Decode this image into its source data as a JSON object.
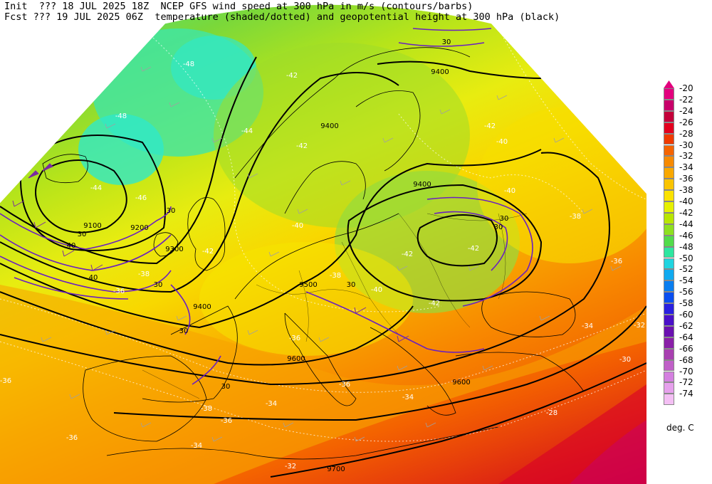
{
  "header": {
    "line1": "Init  ??? 18 JUL 2025 18Z  NCEP GFS wind speed at 300 hPa in m/s (contours/barbs)",
    "line2": "Fcst ??? 19 JUL 2025 06Z  temperature (shaded/dotted) and geopotential height at 300 hPa (black)"
  },
  "colorbar": {
    "levels": [
      "-20",
      "-22",
      "-24",
      "-26",
      "-28",
      "-30",
      "-32",
      "-34",
      "-36",
      "-38",
      "-40",
      "-42",
      "-44",
      "-46",
      "-48",
      "-50",
      "-52",
      "-54",
      "-56",
      "-58",
      "-60",
      "-62",
      "-64",
      "-66",
      "-68",
      "-70",
      "-72",
      "-74"
    ],
    "colors": [
      "#e3007e",
      "#c8006a",
      "#c4003a",
      "#e3001e",
      "#f03a00",
      "#f56400",
      "#f78a00",
      "#f9a800",
      "#fac400",
      "#fbe200",
      "#e6f000",
      "#b8e600",
      "#8ee020",
      "#52dc4a",
      "#2ee6a0",
      "#20d4e0",
      "#10aaf0",
      "#0a7ef0",
      "#0a4ef0",
      "#2a20e0",
      "#4a10c8",
      "#6a10b0",
      "#8a20a8",
      "#a840b0",
      "#c060c8",
      "#d480e0",
      "#e6a0ec",
      "#f4bff4"
    ],
    "units": "deg. C",
    "arrow_color": "#e3007e"
  },
  "map_labels": {
    "height_contours": [
      "9100",
      "9200",
      "9300",
      "9400",
      "9400",
      "9400",
      "9400",
      "9500",
      "9600",
      "9600",
      "9700"
    ],
    "wind_contours": [
      "30",
      "30",
      "30",
      "30",
      "30",
      "30",
      "30",
      "30",
      "40",
      "40",
      "30"
    ],
    "temperature_labels": [
      "-48",
      "-48",
      "-46",
      "-44",
      "-42",
      "-42",
      "-44",
      "-42",
      "-40",
      "-40",
      "-38",
      "-36",
      "-34",
      "-32",
      "-30",
      "-28",
      "-34",
      "-36",
      "-38",
      "-42",
      "-42",
      "-42",
      "-42",
      "-40",
      "-40",
      "-38",
      "-36",
      "-36",
      "-34",
      "-34",
      "-32",
      "-36",
      "-36",
      "-38",
      "-36"
    ]
  }
}
